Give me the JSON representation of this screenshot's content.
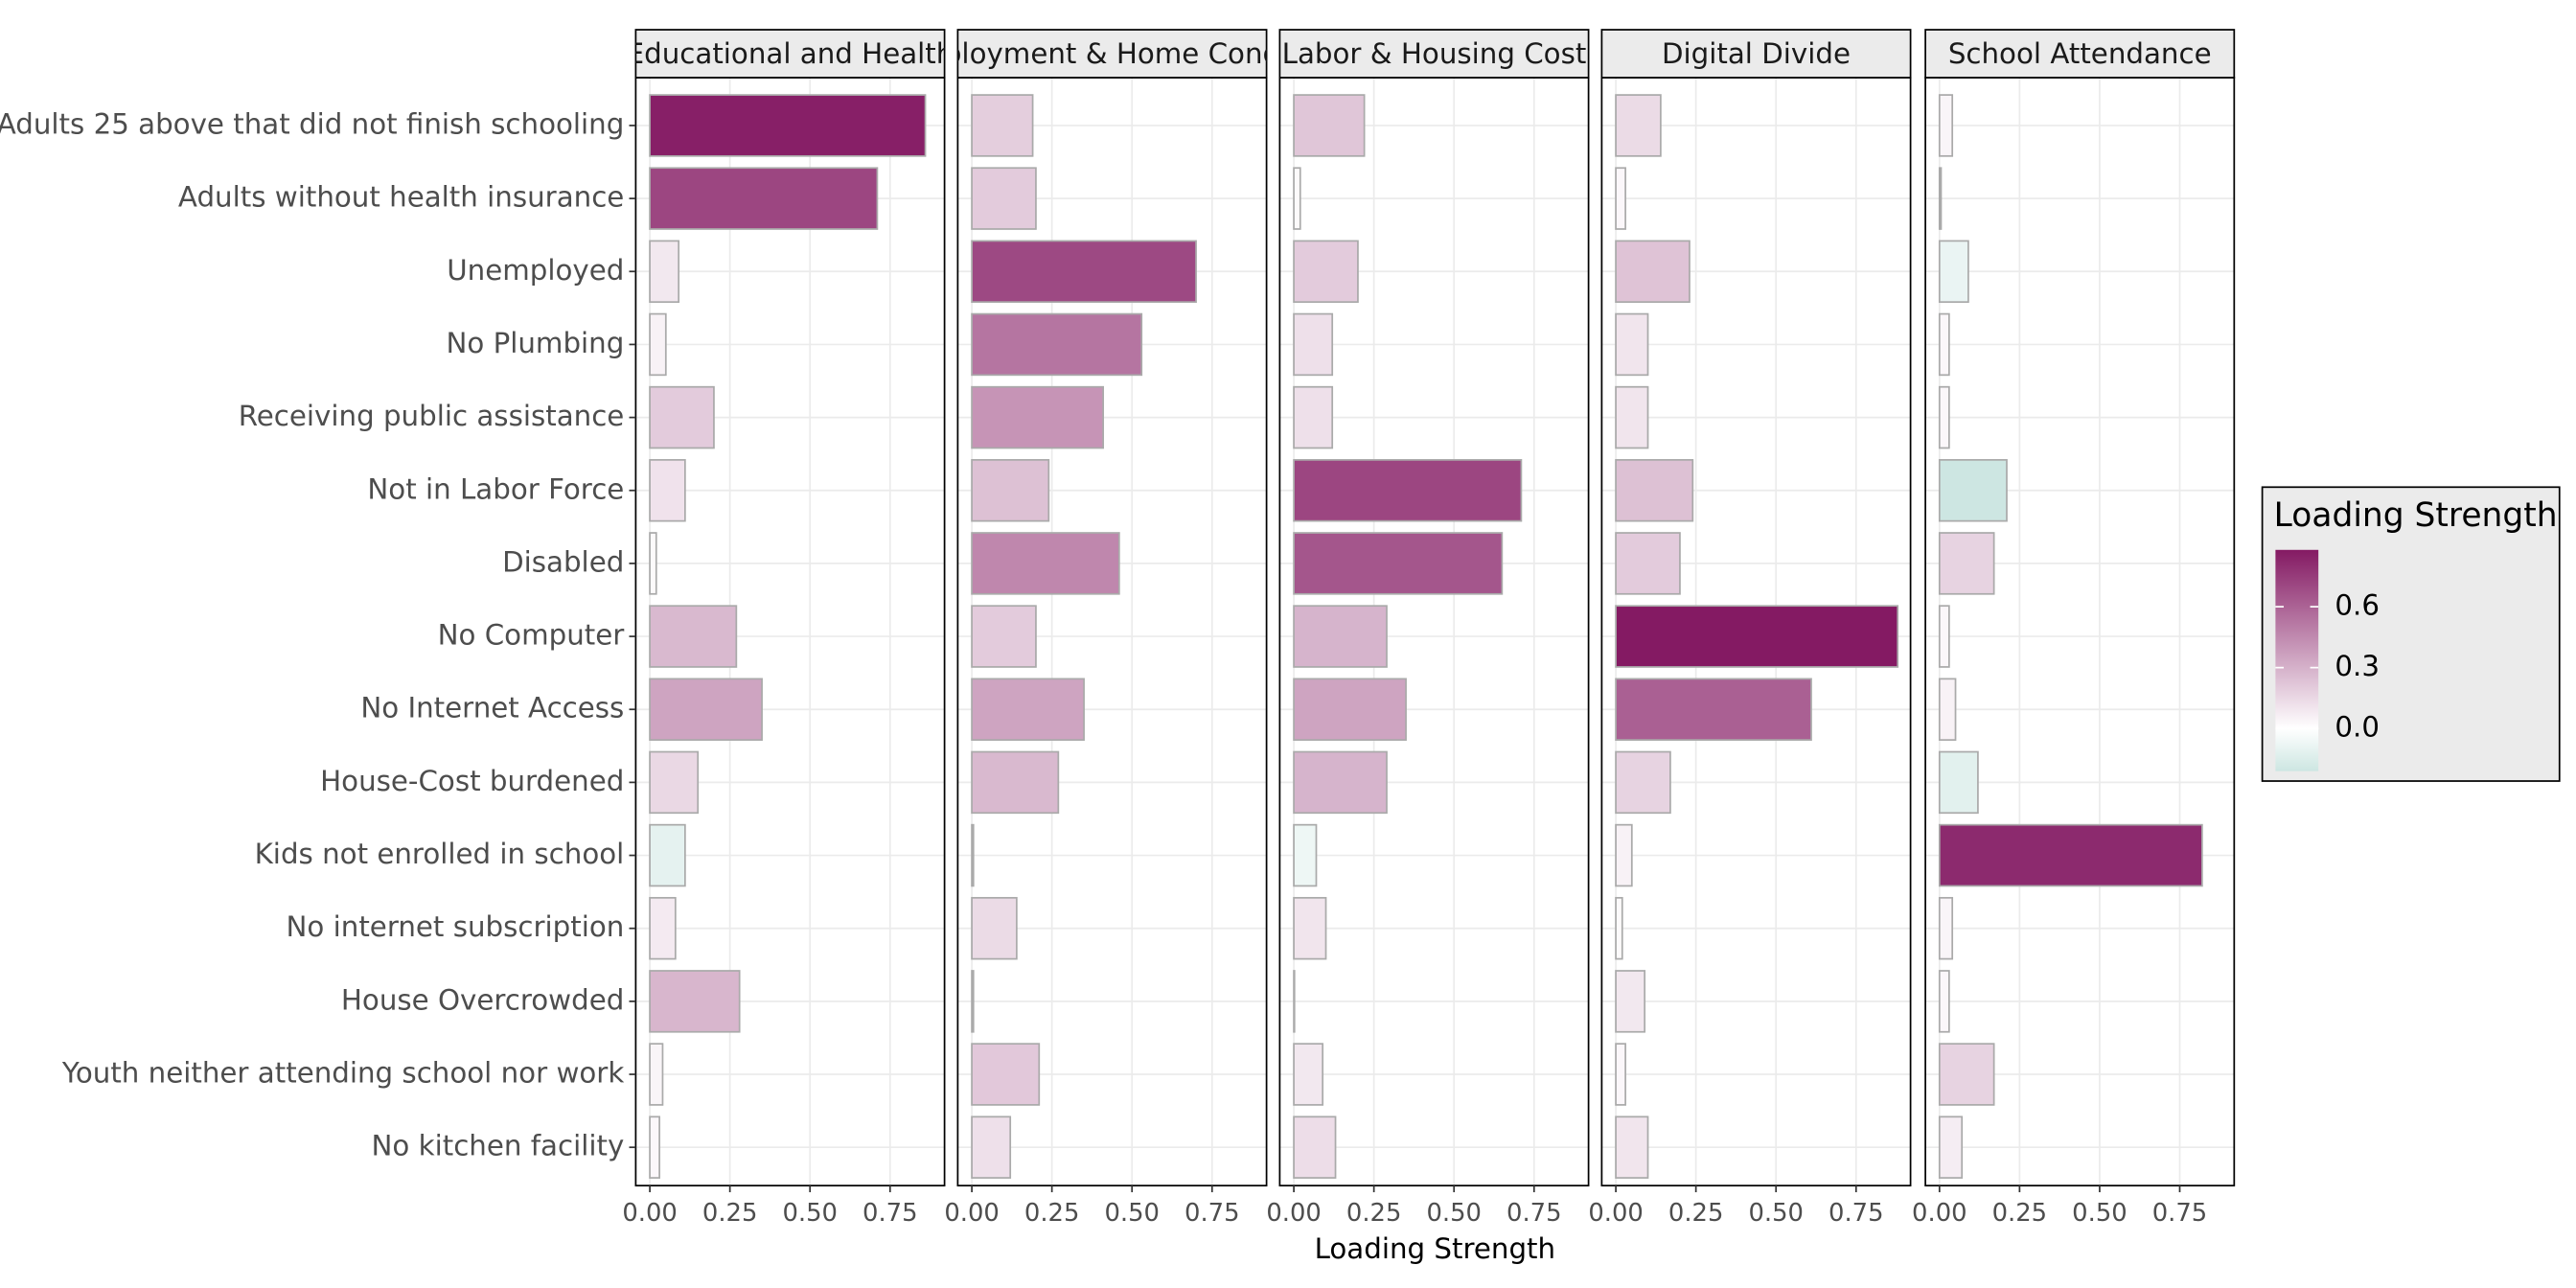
{
  "chart_data": {
    "type": "bar",
    "orientation": "horizontal",
    "x_label": "Loading Strength",
    "categories": [
      "Adults 25 above that did not finish schooling",
      "Adults without health insurance",
      "Unemployed",
      "No Plumbing",
      "Receiving public assistance",
      "Not in Labor Force",
      "Disabled",
      "No Computer",
      "No Internet Access",
      "House-Cost burdened",
      "Kids not enrolled in school",
      "No internet subscription",
      "House Overcrowded",
      "Youth neither attending school nor work",
      "No kitchen facility"
    ],
    "xlim": [
      -0.044,
      0.92
    ],
    "xticks": [
      {
        "value": 0,
        "label": "0.00"
      },
      0.25,
      {
        "value": 0.5,
        "label": "0.50"
      },
      0.75
    ],
    "grid": true,
    "bar_outline": "#aaaaaa",
    "facets": [
      {
        "title": "Educational and Health",
        "values": [
          0.86,
          0.71,
          0.09,
          0.05,
          0.2,
          0.11,
          0.02,
          0.27,
          0.35,
          0.15,
          0.11,
          0.08,
          0.28,
          0.04,
          0.03
        ],
        "fill_values": [
          0.86,
          0.71,
          0.09,
          0.05,
          0.2,
          0.11,
          0.02,
          0.27,
          0.35,
          0.15,
          -0.11,
          0.08,
          0.28,
          0.04,
          0.03
        ]
      },
      {
        "title": "ployment & Home Cond",
        "values": [
          0.19,
          0.2,
          0.7,
          0.53,
          0.41,
          0.24,
          0.46,
          0.2,
          0.35,
          0.27,
          0.005,
          0.14,
          0.005,
          0.21,
          0.12
        ],
        "fill_values": [
          0.19,
          0.2,
          0.7,
          0.53,
          0.41,
          0.24,
          0.46,
          0.2,
          0.35,
          0.27,
          0.005,
          0.14,
          0.005,
          0.21,
          0.12
        ]
      },
      {
        "title": "Labor & Housing Cost",
        "values": [
          0.22,
          0.02,
          0.2,
          0.12,
          0.12,
          0.71,
          0.65,
          0.29,
          0.35,
          0.29,
          0.07,
          0.1,
          0.002,
          0.09,
          0.13
        ],
        "fill_values": [
          0.22,
          0.02,
          0.2,
          0.12,
          0.12,
          0.71,
          0.65,
          0.29,
          0.35,
          0.29,
          -0.07,
          0.1,
          0.002,
          0.09,
          0.13
        ]
      },
      {
        "title": "Digital Divide",
        "values": [
          0.14,
          0.03,
          0.23,
          0.1,
          0.1,
          0.24,
          0.2,
          0.88,
          0.61,
          0.17,
          0.05,
          0.02,
          0.09,
          0.03,
          0.1
        ],
        "fill_values": [
          0.14,
          0.03,
          0.23,
          0.1,
          0.1,
          0.24,
          0.2,
          0.88,
          0.61,
          0.17,
          0.05,
          0.02,
          0.09,
          0.03,
          0.1
        ]
      },
      {
        "title": "School Attendance",
        "values": [
          0.04,
          0.005,
          0.09,
          0.03,
          0.03,
          0.21,
          0.17,
          0.03,
          0.05,
          0.12,
          0.82,
          0.04,
          0.03,
          0.17,
          0.07
        ],
        "fill_values": [
          0.04,
          0.005,
          -0.09,
          0.03,
          0.03,
          -0.21,
          0.17,
          0.03,
          0.05,
          -0.12,
          0.82,
          0.04,
          0.03,
          0.17,
          0.07
        ]
      }
    ],
    "legend": {
      "title": "Loading Strength",
      "position": "right",
      "lim": [
        -0.21,
        0.88
      ],
      "ticks": [
        {
          "value": 0,
          "label": "0.0"
        },
        0.3,
        0.6
      ],
      "colors": {
        "low": "#cde6e2",
        "mid": "#ffffff",
        "high": "#841a63"
      }
    }
  }
}
